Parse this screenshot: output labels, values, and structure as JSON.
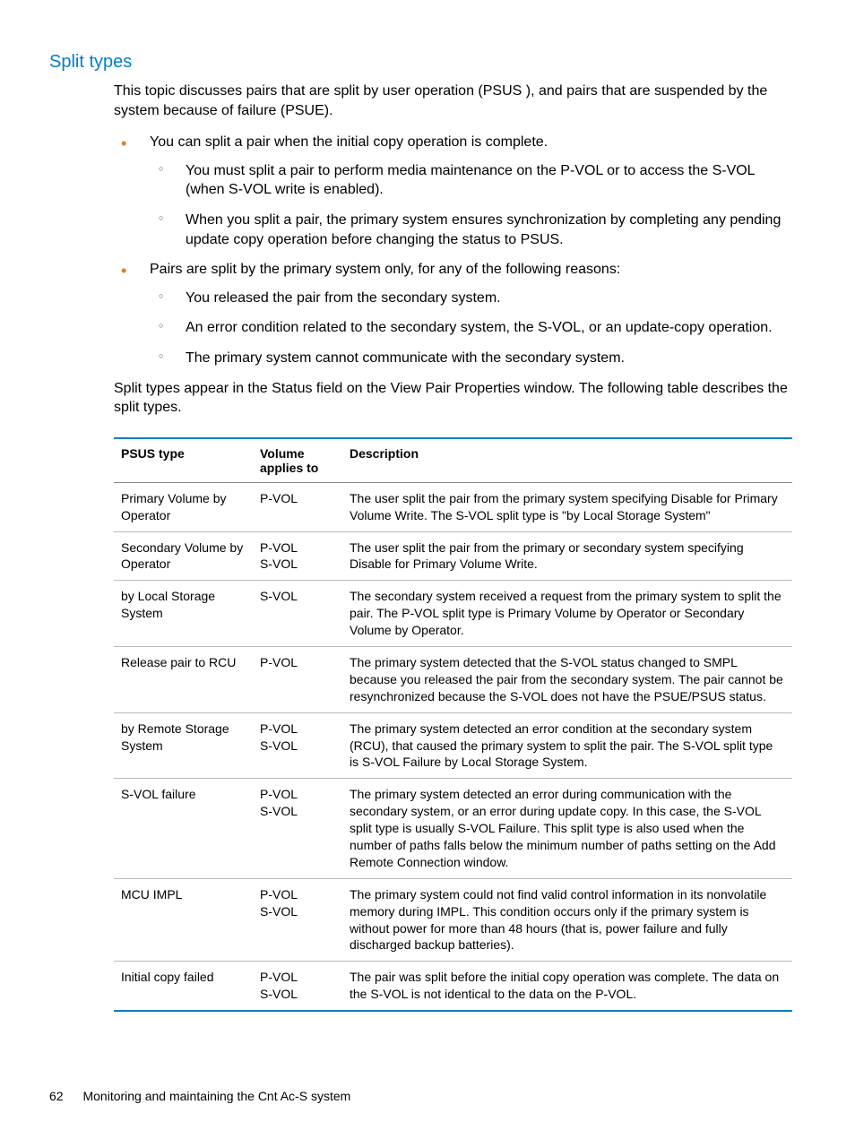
{
  "heading": "Split types",
  "intro": "This topic discusses pairs that are split by user operation (PSUS ), and pairs that are suspended by the system because of failure (PSUE).",
  "bullets": [
    {
      "text": "You can split a pair when the initial copy operation is complete.",
      "sub": [
        "You must split a pair to perform media maintenance on the P-VOL or to access the S-VOL (when S-VOL write is enabled).",
        "When you split a pair, the primary system ensures synchronization by completing any pending update copy operation before changing the status to PSUS."
      ]
    },
    {
      "text": "Pairs are split by the primary system only, for any of the following reasons:",
      "sub": [
        "You released the pair from the secondary system.",
        "An error condition related to the secondary system, the S-VOL, or an update-copy operation.",
        "The primary system cannot communicate with the secondary system."
      ]
    }
  ],
  "table_intro": "Split types appear in the Status field on the View Pair Properties window. The following table describes the split types.",
  "table": {
    "columns": [
      "PSUS type",
      "Volume applies to",
      "Description"
    ],
    "rows": [
      {
        "type": "Primary Volume by Operator",
        "vol": [
          "P-VOL"
        ],
        "desc": "The user split the pair from the primary system specifying Disable for Primary Volume Write. The S-VOL split type is \"by Local Storage System\""
      },
      {
        "type": "Secondary Volume by Operator",
        "vol": [
          "P-VOL",
          "S-VOL"
        ],
        "desc": "The user split the pair from the primary or secondary system specifying Disable for Primary Volume Write."
      },
      {
        "type": "by Local Storage System",
        "vol": [
          "S-VOL"
        ],
        "desc": "The secondary system received a request from the primary system to split the pair. The P-VOL split type is Primary Volume by Operator or Secondary Volume by Operator."
      },
      {
        "type": "Release pair to RCU",
        "vol": [
          "P-VOL"
        ],
        "desc": "The primary system detected that the S-VOL status changed to SMPL because you released the pair from the secondary system. The pair cannot be resynchronized because the S-VOL does not have the PSUE/PSUS status."
      },
      {
        "type": "by Remote Storage System",
        "vol": [
          "P-VOL",
          "S-VOL"
        ],
        "desc": "The primary system detected an error condition at the secondary system (RCU), that caused the primary system to split the pair. The S-VOL split type is S-VOL Failure by Local Storage System."
      },
      {
        "type": "S-VOL failure",
        "vol": [
          "P-VOL",
          "S-VOL"
        ],
        "desc": "The primary system detected an error during communication with the secondary system, or an error during update copy. In this case, the S-VOL split type is usually S-VOL Failure. This split type is also used when the number of paths falls below the minimum number of paths setting on the Add Remote Connection window."
      },
      {
        "type": "MCU IMPL",
        "vol": [
          "P-VOL",
          "S-VOL"
        ],
        "desc": "The primary system could not find valid control information in its nonvolatile memory during IMPL. This condition occurs only if the primary system is without power for more than 48 hours (that is, power failure and fully discharged backup batteries)."
      },
      {
        "type": "Initial copy failed",
        "vol": [
          "P-VOL",
          "S-VOL"
        ],
        "desc": "The pair was split before the initial copy operation was complete. The data on the S-VOL is not identical to the data on the P-VOL."
      }
    ]
  },
  "footer": {
    "page_number": "62",
    "chapter": "Monitoring and maintaining the Cnt Ac-S system"
  },
  "colors": {
    "heading": "#007fc5",
    "bullet": "#e87722",
    "table_border": "#007fc5"
  }
}
